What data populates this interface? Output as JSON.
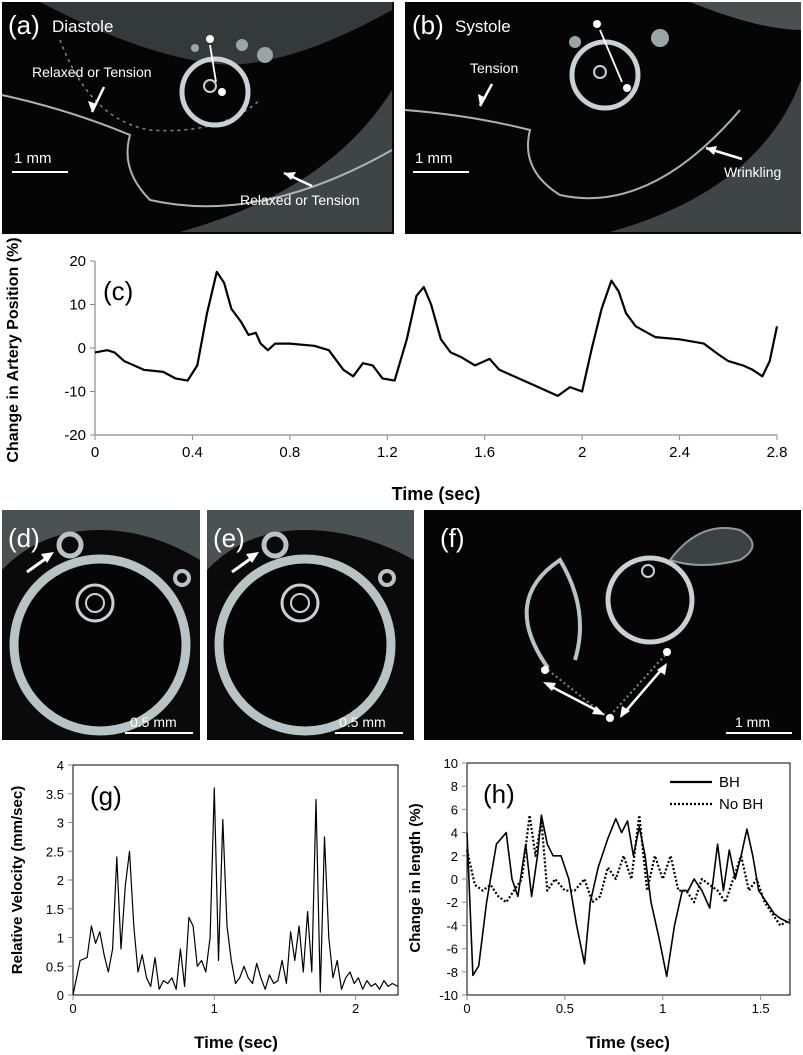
{
  "colors": {
    "panel_bg": "#050505",
    "tissue": "#c8d2d2",
    "line": "#000000",
    "axis": "#7a7a7a",
    "annot": "#ffffff"
  },
  "images": {
    "a": {
      "label": "(a)",
      "title": "Diastole",
      "scale": "1 mm",
      "annotations": [
        "Relaxed or Tension",
        "Relaxed or Tension"
      ]
    },
    "b": {
      "label": "(b)",
      "title": "Systole",
      "scale": "1 mm",
      "annotations": [
        "Tension",
        "Wrinkling"
      ]
    },
    "d": {
      "label": "(d)",
      "scale": "0.5 mm"
    },
    "e": {
      "label": "(e)",
      "scale": "0.5 mm"
    },
    "f": {
      "label": "(f)",
      "scale": "1 mm"
    }
  },
  "chart_data": [
    {
      "id": "c",
      "panel_label": "(c)",
      "type": "line",
      "xlabel": "Time (sec)",
      "ylabel": "Change in Artery Position (%)",
      "xlim": [
        0,
        2.8
      ],
      "ylim": [
        -20,
        20
      ],
      "xticks": [
        "0",
        "0.4",
        "0.8",
        "1.2",
        "1.6",
        "2",
        "2.4",
        "2.8"
      ],
      "yticks": [
        "-20",
        "-10",
        "0",
        "10",
        "20"
      ],
      "series": [
        {
          "x": [
            0,
            0.05,
            0.08,
            0.12,
            0.2,
            0.28,
            0.33,
            0.38,
            0.42,
            0.46,
            0.5,
            0.53,
            0.56,
            0.6,
            0.63,
            0.66,
            0.68,
            0.71,
            0.74,
            0.8,
            0.9,
            0.96,
            1.02,
            1.06,
            1.1,
            1.14,
            1.18,
            1.23,
            1.28,
            1.32,
            1.35,
            1.38,
            1.42,
            1.46,
            1.5,
            1.56,
            1.62,
            1.66,
            1.7,
            1.76,
            1.82,
            1.86,
            1.9,
            1.95,
            2.0,
            2.04,
            2.08,
            2.12,
            2.15,
            2.18,
            2.22,
            2.3,
            2.4,
            2.5,
            2.56,
            2.6,
            2.66,
            2.7,
            2.74,
            2.77,
            2.8
          ],
          "y": [
            -1,
            -0.5,
            -1,
            -3,
            -5,
            -5.5,
            -7,
            -7.5,
            -4,
            8,
            17.5,
            15,
            9,
            6,
            3,
            3.5,
            1,
            -0.5,
            1,
            1,
            0.5,
            -0.5,
            -5,
            -6.5,
            -3.5,
            -4,
            -7,
            -7.5,
            2,
            12,
            14,
            10,
            2,
            -1,
            -2,
            -4,
            -2.5,
            -5,
            -6,
            -7.5,
            -9,
            -10,
            -11,
            -9,
            -10,
            0,
            9,
            15.5,
            13,
            8,
            5,
            2.5,
            2,
            1,
            -1.5,
            -3,
            -4,
            -5,
            -6.5,
            -3,
            5
          ]
        }
      ]
    },
    {
      "id": "g",
      "panel_label": "(g)",
      "type": "line",
      "xlabel": "Time (sec)",
      "ylabel": "Relative Velocity (mm/sec)",
      "xlim": [
        0,
        2.3
      ],
      "ylim": [
        0,
        4
      ],
      "xticks": [
        "0",
        "1",
        "2"
      ],
      "yticks": [
        "0",
        "0.5",
        "1",
        "1.5",
        "2",
        "2.5",
        "3",
        "3.5",
        "4"
      ],
      "series": [
        {
          "x": [
            0,
            0.05,
            0.1,
            0.13,
            0.16,
            0.19,
            0.22,
            0.25,
            0.28,
            0.31,
            0.34,
            0.37,
            0.4,
            0.43,
            0.46,
            0.49,
            0.52,
            0.55,
            0.58,
            0.61,
            0.64,
            0.67,
            0.7,
            0.73,
            0.76,
            0.79,
            0.82,
            0.85,
            0.88,
            0.91,
            0.94,
            0.97,
            1.0,
            1.03,
            1.06,
            1.09,
            1.12,
            1.15,
            1.18,
            1.21,
            1.24,
            1.27,
            1.3,
            1.33,
            1.36,
            1.39,
            1.42,
            1.45,
            1.48,
            1.51,
            1.54,
            1.57,
            1.6,
            1.63,
            1.66,
            1.69,
            1.72,
            1.75,
            1.78,
            1.81,
            1.84,
            1.87,
            1.9,
            1.93,
            1.96,
            1.99,
            2.02,
            2.05,
            2.08,
            2.11,
            2.14,
            2.17,
            2.2,
            2.23,
            2.26,
            2.3
          ],
          "y": [
            0,
            0.6,
            0.65,
            1.2,
            0.9,
            1.1,
            0.7,
            0.4,
            0.8,
            2.4,
            0.8,
            1.9,
            2.5,
            1.2,
            0.4,
            0.7,
            0.3,
            0.15,
            0.65,
            0.1,
            0.25,
            0.2,
            0.3,
            0.1,
            0.8,
            0.15,
            1.35,
            1.2,
            0.5,
            0.6,
            0.4,
            1.0,
            3.6,
            0.6,
            3.05,
            1.2,
            0.6,
            0.2,
            0.3,
            0.5,
            0.3,
            0.2,
            0.55,
            0.3,
            0.1,
            0.35,
            0.2,
            0.25,
            0.6,
            0.2,
            1.1,
            0.6,
            1.2,
            0.4,
            1.45,
            0.4,
            3.4,
            0.05,
            2.75,
            1.0,
            0.3,
            0.6,
            0.1,
            0.3,
            0.4,
            0.2,
            0.3,
            0.1,
            0.25,
            0.15,
            0.2,
            0.1,
            0.25,
            0.15,
            0.2,
            0.15
          ]
        }
      ]
    },
    {
      "id": "h",
      "panel_label": "(h)",
      "type": "line",
      "xlabel": "Time (sec)",
      "ylabel": "Change in length (%)",
      "xlim": [
        0,
        1.65
      ],
      "ylim": [
        -10,
        10
      ],
      "xticks": [
        "0",
        "0.5",
        "1",
        "1.5"
      ],
      "yticks": [
        "-10",
        "-8",
        "-6",
        "-4",
        "-2",
        "0",
        "2",
        "4",
        "6",
        "8",
        "10"
      ],
      "legend": [
        "BH",
        "No BH"
      ],
      "series": [
        {
          "name": "BH",
          "dash": "solid",
          "x": [
            0,
            0.03,
            0.06,
            0.1,
            0.15,
            0.2,
            0.23,
            0.26,
            0.3,
            0.33,
            0.36,
            0.38,
            0.41,
            0.44,
            0.48,
            0.52,
            0.56,
            0.6,
            0.63,
            0.67,
            0.72,
            0.76,
            0.79,
            0.82,
            0.85,
            0.88,
            0.91,
            0.94,
            0.98,
            1.02,
            1.06,
            1.1,
            1.13,
            1.16,
            1.2,
            1.24,
            1.28,
            1.31,
            1.34,
            1.37,
            1.4,
            1.43,
            1.46,
            1.49,
            1.53,
            1.57,
            1.6,
            1.65
          ],
          "y": [
            4,
            -8.3,
            -7.5,
            -2,
            3,
            4,
            0,
            -1.5,
            3,
            -1.5,
            2,
            5.5,
            3,
            2,
            2,
            0,
            -4,
            -7.3,
            -2,
            1,
            3.5,
            5.2,
            4,
            5,
            2,
            4.5,
            2,
            -2,
            -5,
            -8.4,
            -4,
            -1,
            -1,
            0,
            -1,
            -2.5,
            3,
            -1,
            2.5,
            0,
            2,
            4.3,
            2,
            -1,
            -2,
            -3,
            -3.4,
            -3.8
          ]
        },
        {
          "name": "No BH",
          "dash": "dotted",
          "x": [
            0,
            0.04,
            0.08,
            0.12,
            0.16,
            0.2,
            0.24,
            0.28,
            0.32,
            0.35,
            0.38,
            0.41,
            0.45,
            0.5,
            0.55,
            0.6,
            0.64,
            0.68,
            0.72,
            0.76,
            0.8,
            0.84,
            0.88,
            0.92,
            0.96,
            1.0,
            1.04,
            1.08,
            1.12,
            1.16,
            1.2,
            1.24,
            1.28,
            1.32,
            1.36,
            1.4,
            1.44,
            1.48,
            1.52,
            1.56,
            1.6,
            1.65
          ],
          "y": [
            2.5,
            -0.5,
            -1,
            -0.5,
            -1.5,
            -2,
            -1,
            0,
            5.5,
            2,
            5,
            -1,
            0,
            -1,
            -1,
            0,
            -2,
            -1.5,
            1,
            0,
            2,
            0,
            5.5,
            -1,
            2,
            0,
            2,
            -1,
            -1,
            -2,
            0,
            -0.5,
            -1,
            -2,
            0,
            2,
            -1,
            0,
            -2,
            -3,
            -4,
            -3.5
          ]
        }
      ]
    }
  ]
}
